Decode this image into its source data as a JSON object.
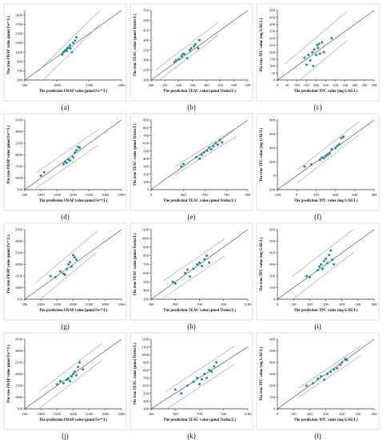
{
  "chart_data": [
    {
      "type": "scatter",
      "panel_label": "(a)",
      "xlabel": "The prediction FRAP value (μmol Fe²⁺/L)",
      "ylabel": "The true FRAP value (μmol Fe²⁺/L)",
      "xlim": [
        500,
        2000
      ],
      "ylim": [
        500,
        2000
      ],
      "xticks": [
        500,
        1000,
        1500,
        2000
      ],
      "yticks": [
        500,
        700,
        900,
        1100,
        1300,
        1500,
        1700,
        1900
      ],
      "x": [
        1080,
        1100,
        1120,
        1140,
        1150,
        1160,
        1180,
        1200,
        1210,
        1230,
        1250,
        1280,
        1300
      ],
      "y": [
        1050,
        1100,
        1130,
        1150,
        1120,
        1180,
        1200,
        1250,
        1180,
        1100,
        1300,
        1350,
        1420
      ]
    },
    {
      "type": "scatter",
      "panel_label": "(b)",
      "xlabel": "The prediction TEAC value (μmol Trolox/L)",
      "ylabel": "The true TEAC value (μmol Trolox/L)",
      "xlim": [
        200,
        550
      ],
      "ylim": [
        200,
        550
      ],
      "xticks": [
        200,
        250,
        300,
        350,
        400,
        450,
        500,
        550
      ],
      "yticks": [
        200,
        250,
        300,
        350,
        400,
        450,
        500,
        550
      ],
      "x": [
        285,
        290,
        300,
        310,
        315,
        320,
        330,
        340,
        345,
        355,
        360,
        370,
        375
      ],
      "y": [
        290,
        300,
        305,
        320,
        330,
        330,
        310,
        350,
        360,
        370,
        380,
        360,
        400
      ]
    },
    {
      "type": "scatter",
      "panel_label": "(c)",
      "xlabel": "The prediction TPC value (mg GAE/L)",
      "ylabel": "The true TPC value (mg GAE/L)",
      "xlim": [
        0,
        500
      ],
      "ylim": [
        0,
        500
      ],
      "xticks": [
        0,
        50,
        100,
        150,
        200,
        250,
        300,
        350,
        400,
        450,
        500
      ],
      "yticks": [
        0,
        50,
        100,
        150,
        200,
        250,
        300,
        350,
        400,
        450,
        500
      ],
      "x": [
        140,
        150,
        160,
        170,
        180,
        185,
        190,
        200,
        205,
        210,
        215,
        220,
        230,
        240,
        280
      ],
      "y": [
        160,
        110,
        180,
        140,
        200,
        100,
        220,
        180,
        250,
        230,
        260,
        190,
        270,
        200,
        300
      ]
    },
    {
      "type": "scatter",
      "panel_label": "(d)",
      "xlabel": "The prediction FRAP value (μmol Fe²⁺/L)",
      "ylabel": "The true FRAP value (μmol Fe²⁺/L)",
      "xlim": [
        500,
        3500
      ],
      "ylim": [
        500,
        3500
      ],
      "xticks": [
        500,
        1000,
        1500,
        2000,
        2500,
        3000,
        3500
      ],
      "yticks": [
        500,
        1000,
        1500,
        2000,
        2500,
        3000,
        3500
      ],
      "x": [
        1000,
        1100,
        1700,
        1750,
        1800,
        1850,
        1900,
        2000,
        2050,
        2100,
        2150,
        2200
      ],
      "y": [
        1100,
        1250,
        1600,
        1700,
        1650,
        1800,
        1750,
        1900,
        2100,
        2200,
        2350,
        2300
      ]
    },
    {
      "type": "scatter",
      "panel_label": "(e)",
      "xlabel": "The prediction TEAC value (μmol Trolox/L)",
      "ylabel": "The true TEAC value (μmol Trolox/L)",
      "xlim": [
        0,
        900
      ],
      "ylim": [
        0,
        900
      ],
      "xticks": [
        0,
        300,
        500,
        700,
        900
      ],
      "yticks": [
        0,
        100,
        200,
        300,
        400,
        500,
        600,
        700,
        800,
        900
      ],
      "x": [
        280,
        300,
        420,
        450,
        470,
        490,
        520,
        540,
        560,
        580,
        600,
        620,
        640,
        660
      ],
      "y": [
        300,
        330,
        420,
        400,
        450,
        480,
        500,
        540,
        520,
        560,
        600,
        580,
        640,
        610
      ]
    },
    {
      "type": "scatter",
      "panel_label": "(f)",
      "xlabel": "The prediction TPC value (mg GAE/L)",
      "ylabel": "The true TPC value (mg GAE/L)",
      "xlim": [
        -200,
        800
      ],
      "ylim": [
        -200,
        800
      ],
      "xticks": [
        -200,
        0,
        200,
        400,
        600,
        800
      ],
      "yticks": [
        -200,
        0,
        200,
        400,
        600,
        800
      ],
      "x": [
        80,
        150,
        240,
        260,
        280,
        300,
        320,
        340,
        360,
        400,
        420,
        440,
        460,
        480
      ],
      "y": [
        130,
        160,
        230,
        260,
        250,
        280,
        300,
        320,
        380,
        400,
        430,
        450,
        540,
        560
      ]
    },
    {
      "type": "scatter",
      "panel_label": "(g)",
      "xlabel": "The prediction FRAP value (μmol Fe²⁺/L)",
      "ylabel": "The true FRAP value (μmol Fe²⁺/L)",
      "xlim": [
        500,
        3500
      ],
      "ylim": [
        500,
        3500
      ],
      "xticks": [
        500,
        1000,
        1500,
        2000,
        2500,
        3000,
        3500
      ],
      "yticks": [
        500,
        1000,
        1500,
        2000,
        2500,
        3000,
        3500
      ],
      "x": [
        1300,
        1450,
        1600,
        1700,
        1750,
        1800,
        1850,
        1900,
        1950,
        2000,
        2050,
        2100
      ],
      "y": [
        1500,
        1450,
        1700,
        1600,
        1550,
        1800,
        2000,
        2100,
        1900,
        2400,
        2300,
        2200
      ]
    },
    {
      "type": "scatter",
      "panel_label": "(h)",
      "xlabel": "The prediction TEAC value (μmol Trolox/L)",
      "ylabel": "The true TEAC value (μmol Trolox/L)",
      "xlim": [
        300,
        1100
      ],
      "ylim": [
        300,
        1100
      ],
      "xticks": [
        300,
        500,
        700,
        900,
        1100
      ],
      "yticks": [
        300,
        400,
        500,
        600,
        700,
        800,
        900,
        1000,
        1100
      ],
      "x": [
        480,
        500,
        580,
        600,
        620,
        650,
        680,
        700,
        720,
        740,
        760,
        780
      ],
      "y": [
        500,
        480,
        600,
        640,
        560,
        650,
        700,
        720,
        680,
        760,
        800,
        720
      ]
    },
    {
      "type": "scatter",
      "panel_label": "(i)",
      "xlabel": "The prediction TPC value (mg GAE/L)",
      "ylabel": "The true TPC value (mg GAE/L)",
      "xlim": [
        0,
        600
      ],
      "ylim": [
        0,
        600
      ],
      "xticks": [
        0,
        100,
        200,
        300,
        400,
        500,
        600
      ],
      "yticks": [
        0,
        100,
        200,
        300,
        400,
        500,
        600
      ],
      "x": [
        180,
        200,
        250,
        260,
        270,
        280,
        290,
        300,
        310,
        320,
        330,
        340,
        350
      ],
      "y": [
        200,
        190,
        250,
        280,
        300,
        260,
        330,
        350,
        310,
        380,
        420,
        340,
        300
      ]
    },
    {
      "type": "scatter",
      "panel_label": "(j)",
      "xlabel": "The prediction FRAP value (μmol Fe²⁺/L)",
      "ylabel": "The true FRAP value (μmol Fe²⁺/L)",
      "xlim": [
        500,
        3500
      ],
      "ylim": [
        500,
        3500
      ],
      "xticks": [
        500,
        1000,
        1500,
        2000,
        2500,
        3000,
        3500
      ],
      "yticks": [
        500,
        1000,
        1500,
        2000,
        2500,
        3000,
        3500
      ],
      "x": [
        1500,
        1600,
        1700,
        1800,
        1850,
        1900,
        1950,
        2000,
        2050,
        2100,
        2150,
        2200,
        2300
      ],
      "y": [
        1550,
        1700,
        1600,
        1750,
        1800,
        1700,
        1900,
        2000,
        2100,
        1950,
        2300,
        2500,
        2200
      ]
    },
    {
      "type": "scatter",
      "panel_label": "(k)",
      "xlabel": "The prediction TEAC value (μmol Trolox/L)",
      "ylabel": "The true TEAC value (μmol Trolox/L)",
      "xlim": [
        300,
        1100
      ],
      "ylim": [
        300,
        1200
      ],
      "xticks": [
        300,
        500,
        700,
        900,
        1100
      ],
      "yticks": [
        300,
        400,
        500,
        600,
        700,
        800,
        900,
        1000,
        1100,
        1200
      ],
      "x": [
        500,
        550,
        600,
        650,
        680,
        700,
        720,
        740,
        760,
        780,
        800,
        820,
        840
      ],
      "y": [
        550,
        500,
        600,
        650,
        700,
        620,
        680,
        750,
        700,
        800,
        780,
        850,
        900
      ]
    },
    {
      "type": "scatter",
      "panel_label": "(l)",
      "xlabel": "The prediction TPC value (mg GAE/L)",
      "ylabel": "The true TPC value (mg GAE/L)",
      "xlim": [
        0,
        600
      ],
      "ylim": [
        0,
        600
      ],
      "xticks": [
        0,
        100,
        200,
        300,
        400,
        500,
        600
      ],
      "yticks": [
        0,
        100,
        200,
        300,
        400,
        500,
        600
      ],
      "x": [
        180,
        220,
        250,
        270,
        290,
        310,
        330,
        350,
        370,
        390,
        400,
        420,
        430
      ],
      "y": [
        200,
        220,
        260,
        280,
        250,
        300,
        320,
        340,
        350,
        380,
        400,
        430,
        420
      ]
    }
  ],
  "colors": {
    "point": "#1f8aa0",
    "identity_line": "#555555",
    "band_line": "#9a9a9a",
    "axis": "#333333",
    "text": "#111111"
  }
}
